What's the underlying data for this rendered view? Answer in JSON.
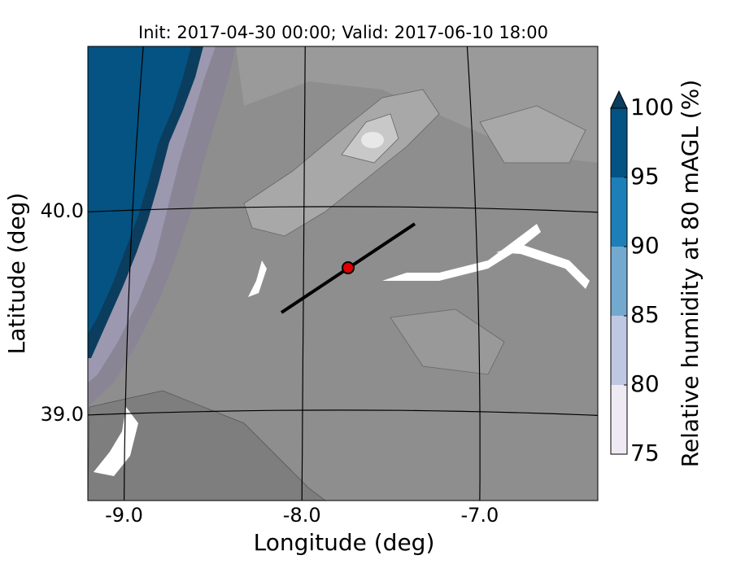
{
  "map": {
    "title": "Init: 2017-04-30 00:00; Valid: 2017-06-10 18:00",
    "x_label": "Longitude (deg)",
    "y_label": "Latitude (deg)",
    "xlim": [
      -9.25,
      -6.35
    ],
    "ylim": [
      38.55,
      40.8
    ],
    "xticks": [
      {
        "value": -9,
        "label": "-9.0"
      },
      {
        "value": -8,
        "label": "-8.0"
      },
      {
        "value": -7,
        "label": "-7.0"
      }
    ],
    "yticks": [
      {
        "value": 39,
        "label": "39.0"
      },
      {
        "value": 40,
        "label": "40.0"
      }
    ],
    "colorbar": {
      "label": "Relative humidity at 80 mAGL (%)",
      "ticks": [
        75,
        80,
        85,
        90,
        95,
        100
      ],
      "colors": [
        "#efe9f3",
        "#bfc8e2",
        "#74a9cf",
        "#1d7fb8",
        "#045382"
      ],
      "extend_color": "#0b3d5e"
    }
  }
}
